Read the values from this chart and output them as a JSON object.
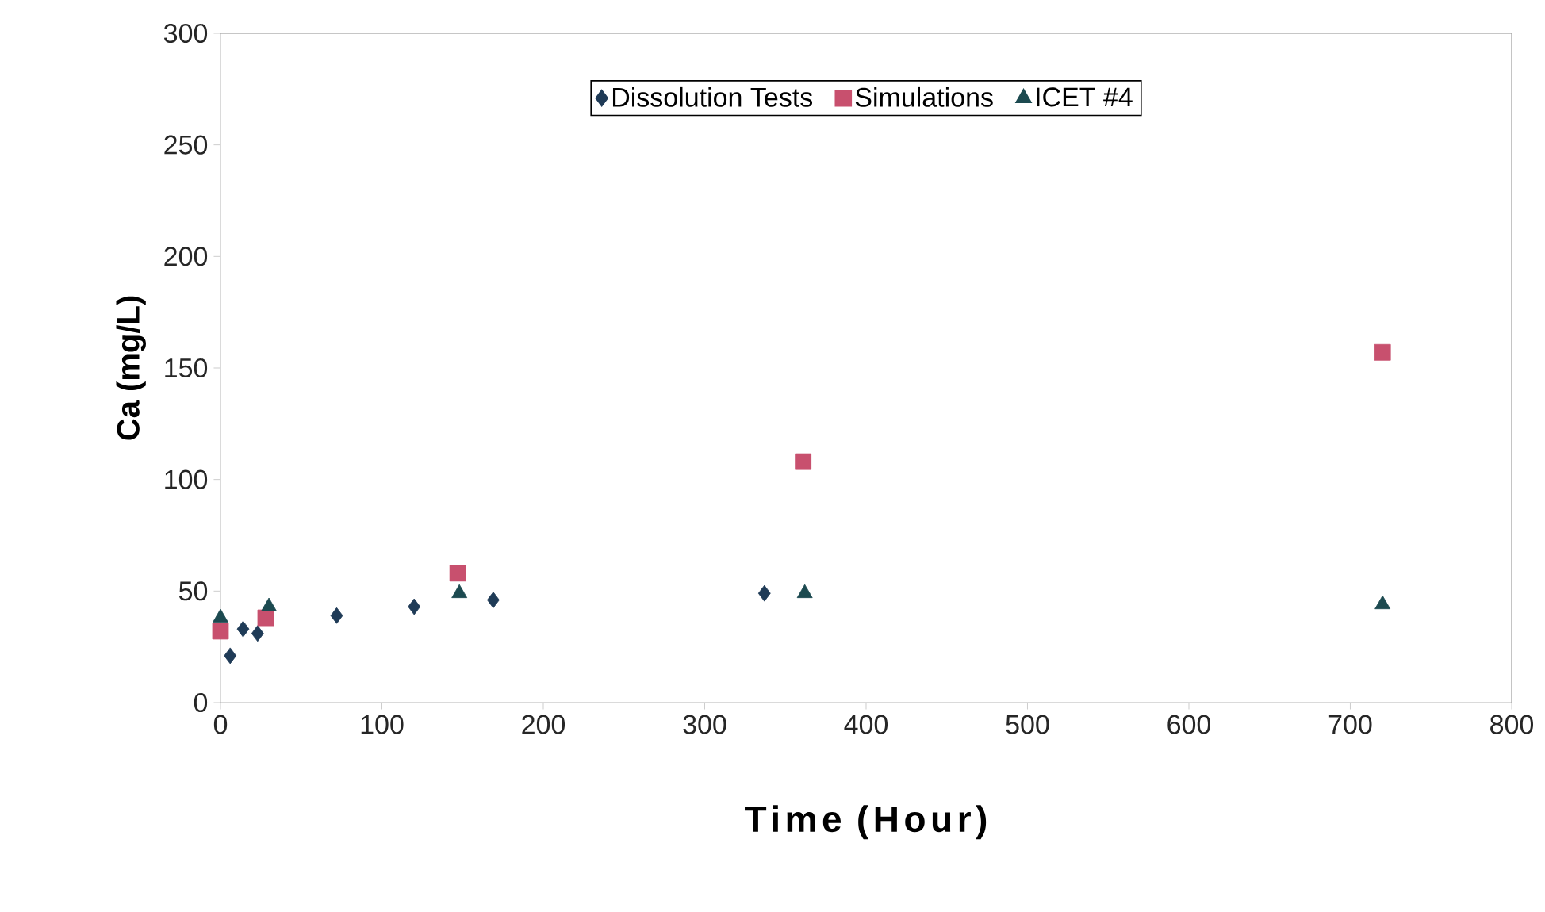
{
  "chart_data": {
    "type": "scatter",
    "xlabel": "Time (Hour)",
    "ylabel": "Ca (mg/L)",
    "xlim": [
      0,
      800
    ],
    "xticks": [
      0,
      100,
      200,
      300,
      400,
      500,
      600,
      700,
      800
    ],
    "ylim": [
      0,
      300
    ],
    "yticks": [
      0,
      50,
      100,
      150,
      200,
      250,
      300
    ],
    "grid": false,
    "legend": "top",
    "series": [
      {
        "name": "Dissolution Tests",
        "color": "#1f3b57",
        "marker": "diamond",
        "x": [
          6,
          14,
          23,
          30,
          72,
          120,
          169,
          337
        ],
        "values": [
          21,
          33,
          31,
          null,
          39,
          43,
          46,
          49
        ]
      },
      {
        "name": "Simulations",
        "color": "#c8506e",
        "marker": "square",
        "x": [
          0,
          28,
          147,
          361,
          720
        ],
        "values": [
          32,
          38,
          58,
          108,
          157
        ]
      },
      {
        "name": "ICET #4",
        "color": "#1c4a50",
        "marker": "triangle",
        "x": [
          0,
          30,
          148,
          362,
          720
        ],
        "values": [
          38,
          43,
          49,
          49,
          44
        ]
      }
    ]
  }
}
